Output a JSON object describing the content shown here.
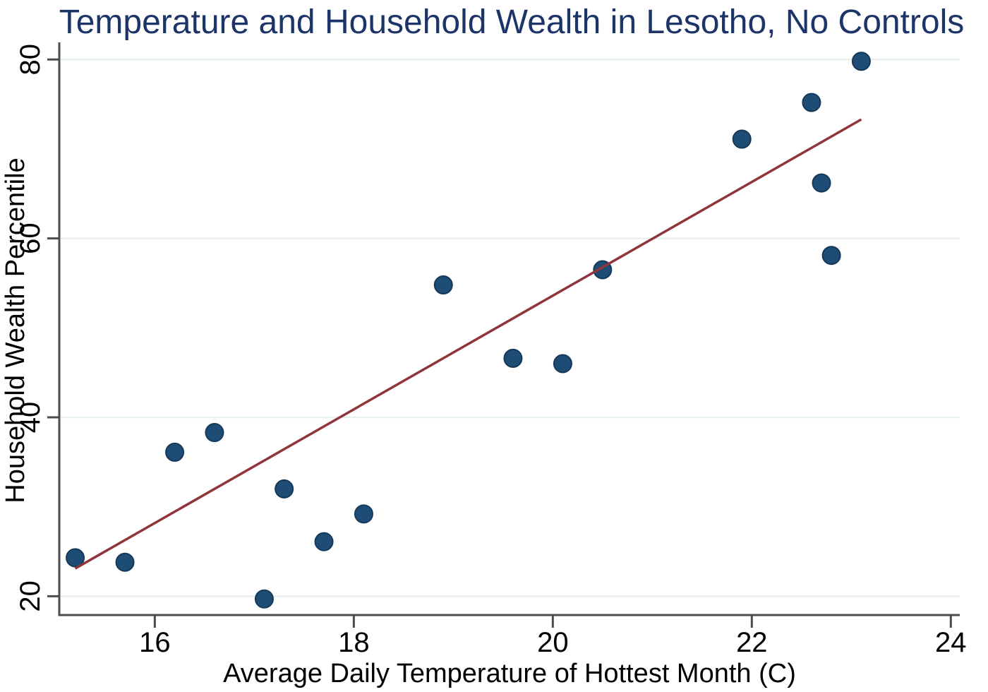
{
  "chart_data": {
    "type": "scatter",
    "title": "Temperature and Household Wealth in Lesotho, No Controls",
    "xlabel": "Average Daily Temperature of Hottest Month (C)",
    "ylabel": "Household Wealth Percentile",
    "x_ticks": [
      16,
      18,
      20,
      22,
      24
    ],
    "y_ticks": [
      20,
      40,
      60,
      80
    ],
    "xlim": [
      15.04,
      24.09
    ],
    "ylim": [
      17.9,
      81.6
    ],
    "grid": "horizontal-only",
    "legend": "none",
    "series": [
      {
        "name": "binned-households",
        "marker": "filled-circle",
        "points": [
          {
            "x": 15.2,
            "y": 24.3
          },
          {
            "x": 15.7,
            "y": 23.8
          },
          {
            "x": 16.2,
            "y": 36.1
          },
          {
            "x": 16.6,
            "y": 38.3
          },
          {
            "x": 17.1,
            "y": 19.7
          },
          {
            "x": 17.3,
            "y": 32.0
          },
          {
            "x": 17.7,
            "y": 26.1
          },
          {
            "x": 18.1,
            "y": 29.2
          },
          {
            "x": 18.9,
            "y": 54.8
          },
          {
            "x": 19.6,
            "y": 46.6
          },
          {
            "x": 20.1,
            "y": 46.0
          },
          {
            "x": 20.5,
            "y": 56.5
          },
          {
            "x": 21.9,
            "y": 71.1
          },
          {
            "x": 22.6,
            "y": 75.2
          },
          {
            "x": 22.7,
            "y": 66.2
          },
          {
            "x": 22.8,
            "y": 58.1
          },
          {
            "x": 23.1,
            "y": 79.8
          }
        ]
      }
    ],
    "fit_line": {
      "name": "linear-fit",
      "x1": 15.2,
      "y1": 23.1,
      "x2": 23.1,
      "y2": 73.3
    },
    "colors": {
      "point_fill": "#1d4c74",
      "point_edge": "#16395a",
      "fit_line": "#90353b",
      "gridline": "#e9f0f4",
      "axis": "#4a4d50",
      "title": "#1c3468",
      "tick_label": "#000000"
    }
  }
}
